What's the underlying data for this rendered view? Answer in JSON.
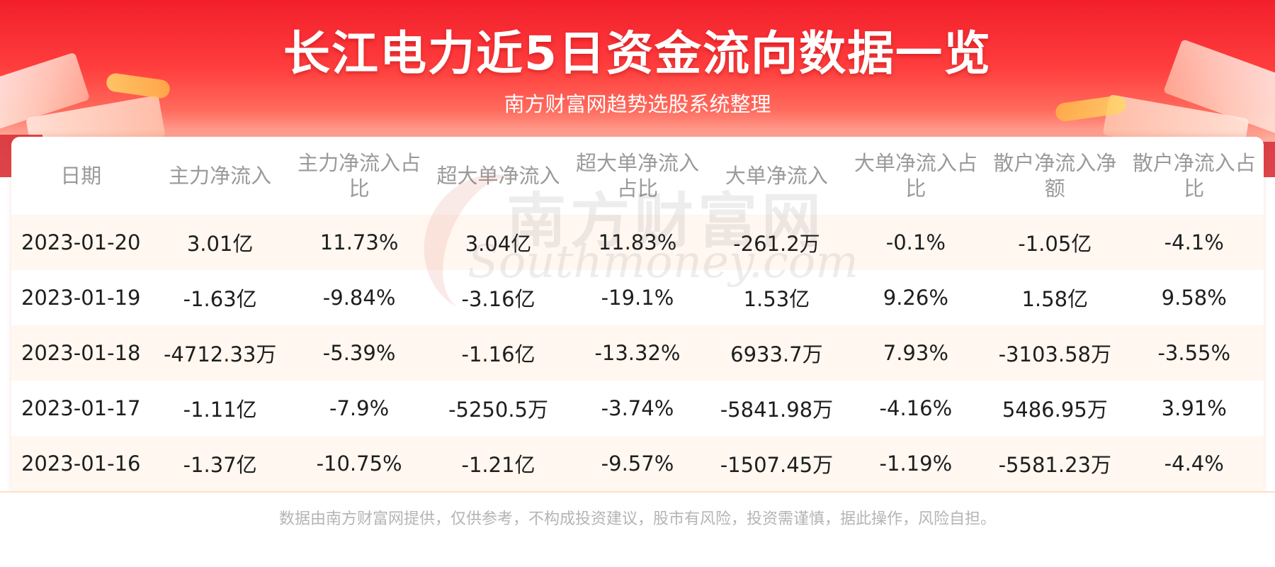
{
  "header": {
    "title": "长江电力近5日资金流向数据一览",
    "subtitle": "南方财富网趋势选股系统整理"
  },
  "watermark": {
    "cn": "南方财富网",
    "en": "Southmoney.com"
  },
  "table": {
    "columns": [
      "日期",
      "主力净流入",
      "主力净流入占比",
      "超大单净流入",
      "超大单净流入占比",
      "大单净流入",
      "大单净流入占比",
      "散户净流入净额",
      "散户净流入占比"
    ],
    "rows": [
      [
        "2023-01-20",
        "3.01亿",
        "11.73%",
        "3.04亿",
        "11.83%",
        "-261.2万",
        "-0.1%",
        "-1.05亿",
        "-4.1%"
      ],
      [
        "2023-01-19",
        "-1.63亿",
        "-9.84%",
        "-3.16亿",
        "-19.1%",
        "1.53亿",
        "9.26%",
        "1.58亿",
        "9.58%"
      ],
      [
        "2023-01-18",
        "-4712.33万",
        "-5.39%",
        "-1.16亿",
        "-13.32%",
        "6933.7万",
        "7.93%",
        "-3103.58万",
        "-3.55%"
      ],
      [
        "2023-01-17",
        "-1.11亿",
        "-7.9%",
        "-5250.5万",
        "-3.74%",
        "-5841.98万",
        "-4.16%",
        "5486.95万",
        "3.91%"
      ],
      [
        "2023-01-16",
        "-1.37亿",
        "-10.75%",
        "-1.21亿",
        "-9.57%",
        "-1507.45万",
        "-1.19%",
        "-5581.23万",
        "-4.4%"
      ]
    ]
  },
  "footer": {
    "disclaimer": "数据由南方财富网提供，仅供参考，不构成投资建议，股市有风险，投资需谨慎，据此操作，风险自担。"
  },
  "colors": {
    "banner_red": "#f21f2b",
    "row_tint": "#fff7f0",
    "header_text": "#9a9a9a",
    "body_text": "#1e1e1e"
  }
}
